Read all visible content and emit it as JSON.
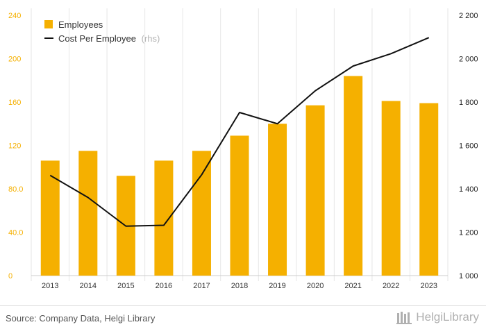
{
  "chart_data": {
    "type": "bar+line",
    "categories": [
      "2013",
      "2014",
      "2015",
      "2016",
      "2017",
      "2018",
      "2019",
      "2020",
      "2021",
      "2022",
      "2023"
    ],
    "series": [
      {
        "name": "Employees",
        "type": "bar",
        "axis": "left",
        "color": "#f5b000",
        "values": [
          106,
          115,
          92,
          106,
          115,
          129,
          140,
          157,
          184,
          161,
          159
        ]
      },
      {
        "name": "Cost Per Employee",
        "type": "line",
        "axis": "right",
        "color": "#111111",
        "values": [
          1462,
          1360,
          1228,
          1232,
          1465,
          1752,
          1700,
          1852,
          1966,
          2023,
          2097
        ]
      }
    ],
    "legend": {
      "employees": "Employees",
      "cost": "Cost Per Employee",
      "rhs": "(rhs)",
      "placement": "top-left"
    },
    "y_left": {
      "min": 0,
      "max": 240,
      "ticks": [
        "0",
        "40.0",
        "80.0",
        "120",
        "160",
        "200",
        "240"
      ],
      "color": "#f5b000"
    },
    "y_right": {
      "min": 1000,
      "max": 2200,
      "ticks": [
        "1 000",
        "1 200",
        "1 400",
        "1 600",
        "1 800",
        "2 000",
        "2 200"
      ]
    },
    "grid": "vertical"
  },
  "footer": {
    "source": "Source: Company Data, Helgi Library",
    "brand": "HelgiLibrary"
  }
}
